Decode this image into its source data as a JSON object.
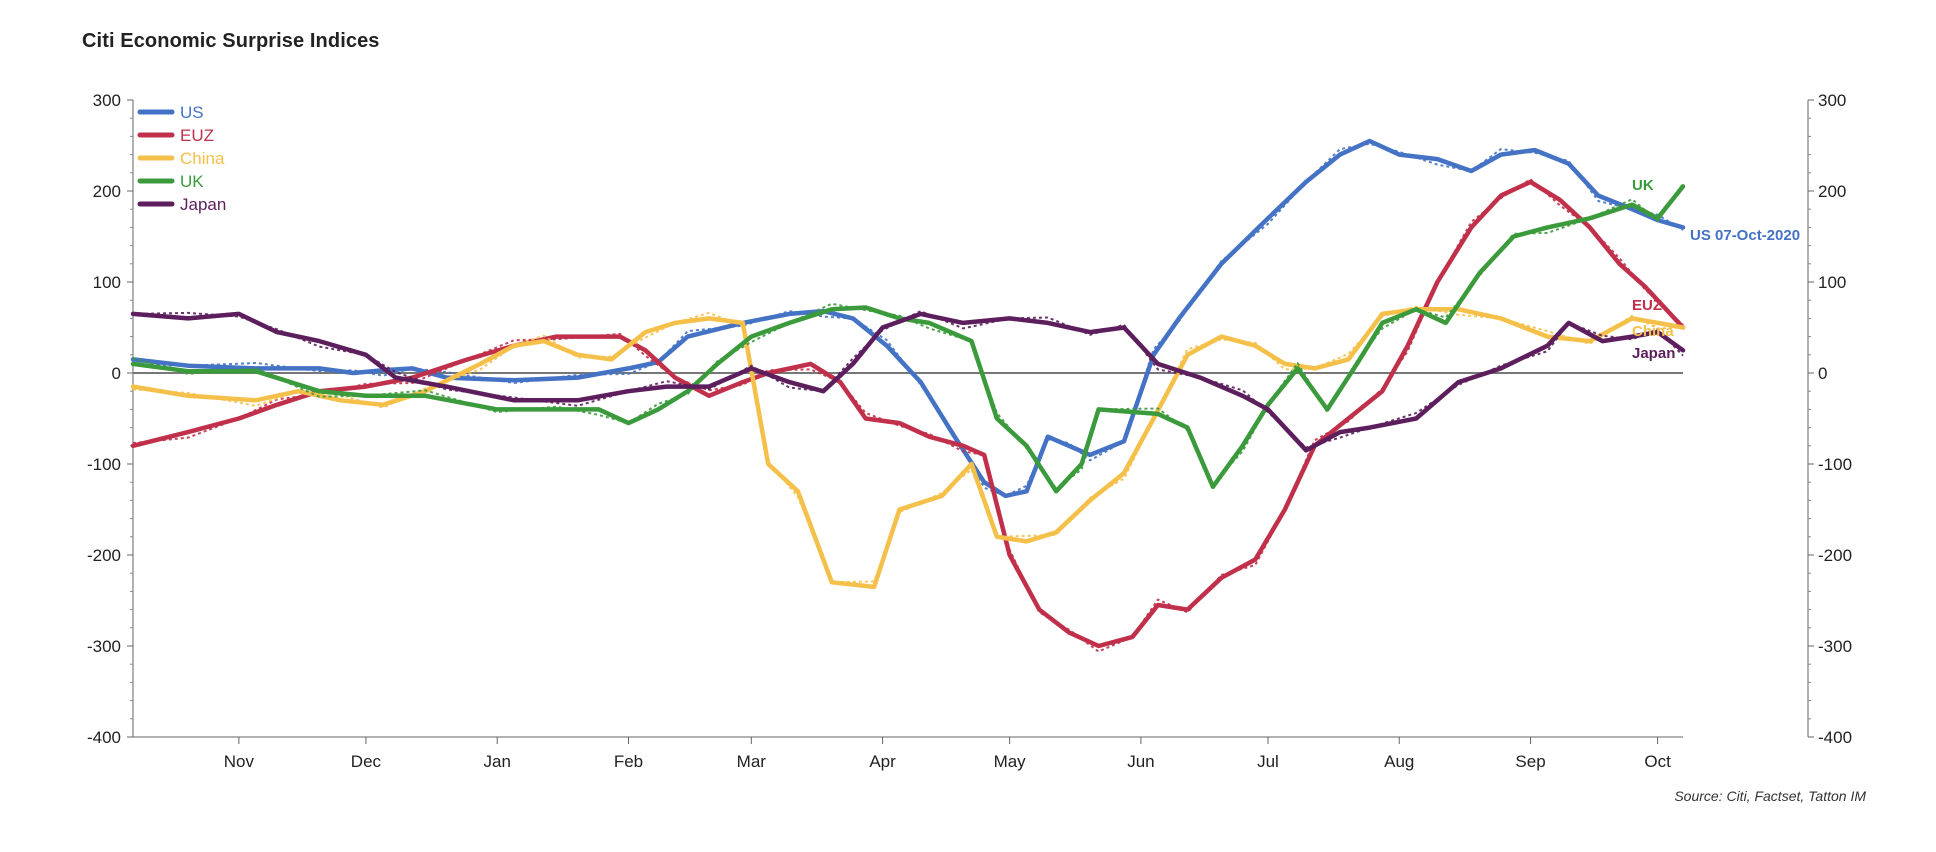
{
  "chart_data": {
    "type": "line",
    "title": "Citi Economic Surprise Indices",
    "source": "Source: Citi, Factset, Tatton IM",
    "xlabel": "",
    "ylabel": "",
    "x_start": "2019-10-07",
    "x_end": "2020-10-07",
    "ylim": [
      -400,
      300
    ],
    "y_ticks": [
      300,
      200,
      100,
      0,
      -100,
      -200,
      -300,
      -400
    ],
    "y_tick_labels": [
      "300",
      "200",
      "100",
      "0",
      "-100",
      "-200",
      "-300",
      "-400"
    ],
    "x_ticks": [
      {
        "label": "Nov",
        "date": "2019-11-01"
      },
      {
        "label": "Dec",
        "date": "2019-12-01"
      },
      {
        "label": "Jan",
        "date": "2020-01-01"
      },
      {
        "label": "Feb",
        "date": "2020-02-01"
      },
      {
        "label": "Mar",
        "date": "2020-03-01"
      },
      {
        "label": "Apr",
        "date": "2020-04-01"
      },
      {
        "label": "May",
        "date": "2020-05-01"
      },
      {
        "label": "Jun",
        "date": "2020-06-01"
      },
      {
        "label": "Jul",
        "date": "2020-07-01"
      },
      {
        "label": "Aug",
        "date": "2020-08-01"
      },
      {
        "label": "Sep",
        "date": "2020-09-01"
      },
      {
        "label": "Oct",
        "date": "2020-10-01"
      }
    ],
    "legend_position": "top-left",
    "grid": false,
    "zero_line": true,
    "series": [
      {
        "name": "US",
        "color": "#4472c4",
        "end_label": "US 07-Oct-2020",
        "points": [
          [
            "2019-10-07",
            15
          ],
          [
            "2019-10-20",
            8
          ],
          [
            "2019-11-05",
            5
          ],
          [
            "2019-11-20",
            5
          ],
          [
            "2019-11-28",
            0
          ],
          [
            "2019-12-05",
            3
          ],
          [
            "2019-12-12",
            5
          ],
          [
            "2019-12-20",
            -5
          ],
          [
            "2020-01-05",
            -8
          ],
          [
            "2020-01-20",
            -5
          ],
          [
            "2020-02-01",
            5
          ],
          [
            "2020-02-08",
            12
          ],
          [
            "2020-02-15",
            40
          ],
          [
            "2020-02-28",
            55
          ],
          [
            "2020-03-10",
            65
          ],
          [
            "2020-03-18",
            68
          ],
          [
            "2020-03-25",
            60
          ],
          [
            "2020-04-02",
            30
          ],
          [
            "2020-04-10",
            -10
          ],
          [
            "2020-04-18",
            -70
          ],
          [
            "2020-04-25",
            -120
          ],
          [
            "2020-04-30",
            -135
          ],
          [
            "2020-05-05",
            -130
          ],
          [
            "2020-05-10",
            -70
          ],
          [
            "2020-05-15",
            -80
          ],
          [
            "2020-05-20",
            -90
          ],
          [
            "2020-05-28",
            -75
          ],
          [
            "2020-06-04",
            20
          ],
          [
            "2020-06-10",
            60
          ],
          [
            "2020-06-20",
            120
          ],
          [
            "2020-07-01",
            170
          ],
          [
            "2020-07-10",
            210
          ],
          [
            "2020-07-18",
            240
          ],
          [
            "2020-07-25",
            255
          ],
          [
            "2020-08-01",
            240
          ],
          [
            "2020-08-10",
            235
          ],
          [
            "2020-08-18",
            222
          ],
          [
            "2020-08-25",
            240
          ],
          [
            "2020-09-02",
            245
          ],
          [
            "2020-09-10",
            230
          ],
          [
            "2020-09-17",
            195
          ],
          [
            "2020-09-25",
            180
          ],
          [
            "2020-10-01",
            168
          ],
          [
            "2020-10-07",
            160
          ]
        ]
      },
      {
        "name": "EUZ",
        "color": "#c0304a",
        "end_label": "EUZ",
        "points": [
          [
            "2019-10-07",
            -80
          ],
          [
            "2019-10-20",
            -65
          ],
          [
            "2019-11-01",
            -50
          ],
          [
            "2019-11-10",
            -35
          ],
          [
            "2019-11-20",
            -20
          ],
          [
            "2019-12-01",
            -15
          ],
          [
            "2019-12-12",
            -5
          ],
          [
            "2019-12-25",
            15
          ],
          [
            "2020-01-05",
            30
          ],
          [
            "2020-01-15",
            40
          ],
          [
            "2020-01-30",
            40
          ],
          [
            "2020-02-05",
            25
          ],
          [
            "2020-02-12",
            -5
          ],
          [
            "2020-02-20",
            -25
          ],
          [
            "2020-02-28",
            -10
          ],
          [
            "2020-03-05",
            0
          ],
          [
            "2020-03-15",
            10
          ],
          [
            "2020-03-22",
            -10
          ],
          [
            "2020-03-28",
            -50
          ],
          [
            "2020-04-05",
            -55
          ],
          [
            "2020-04-12",
            -70
          ],
          [
            "2020-04-20",
            -80
          ],
          [
            "2020-04-25",
            -90
          ],
          [
            "2020-05-01",
            -200
          ],
          [
            "2020-05-08",
            -260
          ],
          [
            "2020-05-15",
            -285
          ],
          [
            "2020-05-22",
            -300
          ],
          [
            "2020-05-30",
            -290
          ],
          [
            "2020-06-05",
            -255
          ],
          [
            "2020-06-12",
            -260
          ],
          [
            "2020-06-20",
            -225
          ],
          [
            "2020-06-28",
            -205
          ],
          [
            "2020-07-05",
            -150
          ],
          [
            "2020-07-12",
            -80
          ],
          [
            "2020-07-20",
            -50
          ],
          [
            "2020-07-28",
            -20
          ],
          [
            "2020-08-03",
            30
          ],
          [
            "2020-08-10",
            100
          ],
          [
            "2020-08-18",
            160
          ],
          [
            "2020-08-25",
            195
          ],
          [
            "2020-09-01",
            210
          ],
          [
            "2020-09-08",
            190
          ],
          [
            "2020-09-15",
            160
          ],
          [
            "2020-09-22",
            120
          ],
          [
            "2020-09-28",
            95
          ],
          [
            "2020-10-07",
            50
          ]
        ]
      },
      {
        "name": "China",
        "color": "#f5c04a",
        "end_label": "China",
        "points": [
          [
            "2019-10-07",
            -15
          ],
          [
            "2019-10-20",
            -25
          ],
          [
            "2019-11-05",
            -30
          ],
          [
            "2019-11-15",
            -20
          ],
          [
            "2019-11-25",
            -30
          ],
          [
            "2019-12-05",
            -35
          ],
          [
            "2019-12-15",
            -20
          ],
          [
            "2019-12-28",
            10
          ],
          [
            "2020-01-05",
            30
          ],
          [
            "2020-01-12",
            35
          ],
          [
            "2020-01-20",
            20
          ],
          [
            "2020-01-28",
            15
          ],
          [
            "2020-02-05",
            45
          ],
          [
            "2020-02-12",
            55
          ],
          [
            "2020-02-20",
            60
          ],
          [
            "2020-02-28",
            55
          ],
          [
            "2020-03-05",
            -100
          ],
          [
            "2020-03-12",
            -130
          ],
          [
            "2020-03-20",
            -230
          ],
          [
            "2020-03-30",
            -235
          ],
          [
            "2020-04-05",
            -150
          ],
          [
            "2020-04-15",
            -135
          ],
          [
            "2020-04-22",
            -100
          ],
          [
            "2020-04-28",
            -180
          ],
          [
            "2020-05-05",
            -185
          ],
          [
            "2020-05-12",
            -175
          ],
          [
            "2020-05-20",
            -140
          ],
          [
            "2020-05-28",
            -110
          ],
          [
            "2020-06-04",
            -50
          ],
          [
            "2020-06-12",
            20
          ],
          [
            "2020-06-20",
            40
          ],
          [
            "2020-06-28",
            30
          ],
          [
            "2020-07-05",
            10
          ],
          [
            "2020-07-12",
            5
          ],
          [
            "2020-07-20",
            15
          ],
          [
            "2020-07-28",
            65
          ],
          [
            "2020-08-05",
            70
          ],
          [
            "2020-08-15",
            70
          ],
          [
            "2020-08-25",
            60
          ],
          [
            "2020-09-05",
            40
          ],
          [
            "2020-09-15",
            35
          ],
          [
            "2020-09-25",
            60
          ],
          [
            "2020-10-01",
            55
          ],
          [
            "2020-10-07",
            50
          ]
        ]
      },
      {
        "name": "UK",
        "color": "#3b9a3b",
        "end_label": "UK",
        "points": [
          [
            "2019-10-07",
            10
          ],
          [
            "2019-10-20",
            2
          ],
          [
            "2019-11-05",
            2
          ],
          [
            "2019-11-20",
            -20
          ],
          [
            "2019-12-01",
            -25
          ],
          [
            "2019-12-15",
            -25
          ],
          [
            "2020-01-01",
            -40
          ],
          [
            "2020-01-15",
            -40
          ],
          [
            "2020-01-25",
            -40
          ],
          [
            "2020-02-01",
            -55
          ],
          [
            "2020-02-08",
            -40
          ],
          [
            "2020-02-15",
            -20
          ],
          [
            "2020-02-22",
            10
          ],
          [
            "2020-03-01",
            40
          ],
          [
            "2020-03-10",
            55
          ],
          [
            "2020-03-20",
            70
          ],
          [
            "2020-03-28",
            72
          ],
          [
            "2020-04-05",
            60
          ],
          [
            "2020-04-12",
            55
          ],
          [
            "2020-04-22",
            35
          ],
          [
            "2020-04-28",
            -50
          ],
          [
            "2020-05-05",
            -80
          ],
          [
            "2020-05-12",
            -130
          ],
          [
            "2020-05-18",
            -100
          ],
          [
            "2020-05-22",
            -40
          ],
          [
            "2020-06-05",
            -45
          ],
          [
            "2020-06-12",
            -60
          ],
          [
            "2020-06-18",
            -125
          ],
          [
            "2020-06-25",
            -80
          ],
          [
            "2020-07-01",
            -35
          ],
          [
            "2020-07-08",
            5
          ],
          [
            "2020-07-15",
            -40
          ],
          [
            "2020-07-22",
            10
          ],
          [
            "2020-07-28",
            55
          ],
          [
            "2020-08-05",
            70
          ],
          [
            "2020-08-12",
            55
          ],
          [
            "2020-08-20",
            110
          ],
          [
            "2020-08-28",
            150
          ],
          [
            "2020-09-05",
            160
          ],
          [
            "2020-09-15",
            170
          ],
          [
            "2020-09-25",
            185
          ],
          [
            "2020-10-01",
            170
          ],
          [
            "2020-10-07",
            205
          ]
        ]
      },
      {
        "name": "Japan",
        "color": "#5c1e5c",
        "end_label": "Japan",
        "points": [
          [
            "2019-10-07",
            65
          ],
          [
            "2019-10-20",
            60
          ],
          [
            "2019-11-01",
            65
          ],
          [
            "2019-11-10",
            45
          ],
          [
            "2019-11-20",
            35
          ],
          [
            "2019-12-01",
            20
          ],
          [
            "2019-12-08",
            -5
          ],
          [
            "2019-12-20",
            -15
          ],
          [
            "2020-01-05",
            -30
          ],
          [
            "2020-01-20",
            -30
          ],
          [
            "2020-02-01",
            -20
          ],
          [
            "2020-02-10",
            -15
          ],
          [
            "2020-02-20",
            -15
          ],
          [
            "2020-03-01",
            5
          ],
          [
            "2020-03-10",
            -10
          ],
          [
            "2020-03-18",
            -20
          ],
          [
            "2020-03-25",
            10
          ],
          [
            "2020-04-01",
            50
          ],
          [
            "2020-04-10",
            65
          ],
          [
            "2020-04-20",
            55
          ],
          [
            "2020-05-01",
            60
          ],
          [
            "2020-05-10",
            55
          ],
          [
            "2020-05-20",
            45
          ],
          [
            "2020-05-28",
            50
          ],
          [
            "2020-06-05",
            10
          ],
          [
            "2020-06-15",
            -5
          ],
          [
            "2020-06-25",
            -25
          ],
          [
            "2020-07-01",
            -40
          ],
          [
            "2020-07-10",
            -85
          ],
          [
            "2020-07-18",
            -65
          ],
          [
            "2020-07-25",
            -60
          ],
          [
            "2020-08-05",
            -50
          ],
          [
            "2020-08-15",
            -10
          ],
          [
            "2020-08-25",
            5
          ],
          [
            "2020-09-05",
            30
          ],
          [
            "2020-09-10",
            55
          ],
          [
            "2020-09-18",
            35
          ],
          [
            "2020-09-25",
            40
          ],
          [
            "2020-10-01",
            45
          ],
          [
            "2020-10-07",
            25
          ]
        ]
      }
    ]
  }
}
